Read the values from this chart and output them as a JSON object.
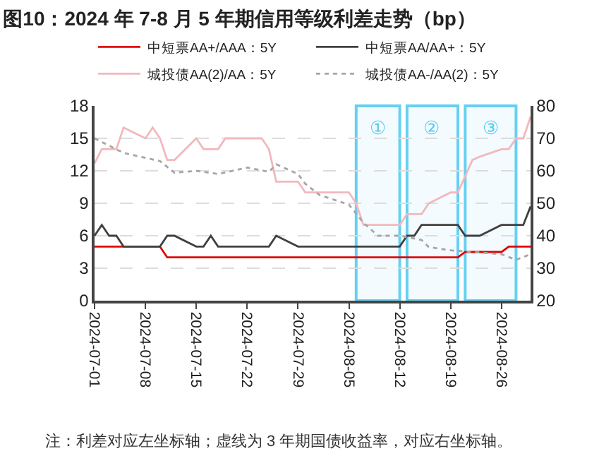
{
  "chart_data": {
    "type": "line",
    "title": "图10：2024 年 7-8 月 5 年期信用等级利差走势（bp）",
    "x": [
      "2024-07-01",
      "2024-07-02",
      "2024-07-03",
      "2024-07-04",
      "2024-07-05",
      "2024-07-08",
      "2024-07-09",
      "2024-07-10",
      "2024-07-11",
      "2024-07-12",
      "2024-07-15",
      "2024-07-16",
      "2024-07-17",
      "2024-07-18",
      "2024-07-19",
      "2024-07-22",
      "2024-07-23",
      "2024-07-24",
      "2024-07-25",
      "2024-07-26",
      "2024-07-29",
      "2024-07-30",
      "2024-07-31",
      "2024-08-01",
      "2024-08-02",
      "2024-08-05",
      "2024-08-06",
      "2024-08-07",
      "2024-08-08",
      "2024-08-09",
      "2024-08-12",
      "2024-08-13",
      "2024-08-14",
      "2024-08-15",
      "2024-08-16",
      "2024-08-19",
      "2024-08-20",
      "2024-08-21",
      "2024-08-22",
      "2024-08-23",
      "2024-08-26",
      "2024-08-27",
      "2024-08-28",
      "2024-08-29",
      "2024-08-30"
    ],
    "series": [
      {
        "name": "中短票AA+/AAA：5Y",
        "color": "#e00000",
        "line_style": "solid",
        "values": [
          5,
          5,
          5,
          5,
          5,
          5,
          5,
          5,
          4,
          4,
          4,
          4,
          4,
          4,
          4,
          4,
          4,
          4,
          4,
          4,
          4,
          4,
          4,
          4,
          4,
          4,
          4,
          4,
          4,
          4,
          4,
          4,
          4,
          4,
          4,
          4,
          4,
          4.5,
          4.5,
          4.5,
          4.5,
          5,
          5,
          5,
          5
        ]
      },
      {
        "name": "中短票AA/AA+：5Y",
        "color": "#404040",
        "line_style": "solid",
        "values": [
          6,
          7,
          6,
          6,
          5,
          5,
          5,
          5,
          6,
          6,
          5,
          5,
          6,
          5,
          5,
          5,
          5,
          5,
          5,
          6,
          5,
          5,
          5,
          5,
          5,
          5,
          5,
          5,
          5,
          5,
          5,
          6,
          6,
          7,
          7,
          7,
          7,
          6,
          6,
          6,
          7,
          7,
          7,
          7,
          8.7
        ]
      },
      {
        "name": "城投债AA(2)/AA：5Y",
        "color": "#f2b8bd",
        "line_style": "solid",
        "values": [
          12.7,
          14,
          14,
          14,
          16,
          15,
          16,
          15,
          13,
          13,
          15,
          14,
          14,
          14,
          15,
          15,
          15,
          15,
          14,
          11,
          11,
          10,
          10,
          10,
          10,
          10,
          9,
          7,
          7,
          7,
          7,
          8,
          8,
          8,
          9,
          10,
          10,
          11.5,
          13,
          13.3,
          14,
          14,
          15,
          15,
          17
        ]
      },
      {
        "name": "城投债AA-/AA(2)：5Y",
        "color": "#a6a6a6",
        "line_style": "dotted",
        "axis": "y2",
        "x": [
          "2024-07-01",
          "2024-07-05",
          "2024-07-10",
          "2024-07-12",
          "2024-07-15",
          "2024-07-18",
          "2024-07-22",
          "2024-07-25",
          "2024-07-26",
          "2024-07-29",
          "2024-07-30",
          "2024-08-01",
          "2024-08-05",
          "2024-08-07",
          "2024-08-09",
          "2024-08-12",
          "2024-08-15",
          "2024-08-16",
          "2024-08-19",
          "2024-08-22",
          "2024-08-26",
          "2024-08-28",
          "2024-08-30"
        ],
        "values": [
          70,
          65.5,
          63,
          59.4,
          60,
          59,
          61,
          59.7,
          62,
          59,
          56,
          52.5,
          49.6,
          44,
          40,
          40,
          38.7,
          36.5,
          35.5,
          35,
          34.3,
          32.6,
          34.3
        ]
      }
    ],
    "xlim": [
      "2024-07-01",
      "2024-08-30"
    ],
    "xticks": [
      "2024-07-01",
      "2024-07-08",
      "2024-07-15",
      "2024-07-22",
      "2024-07-29",
      "2024-08-05",
      "2024-08-12",
      "2024-08-19",
      "2024-08-26"
    ],
    "ylim": [
      0,
      18
    ],
    "yticks": [
      0,
      3,
      6,
      9,
      12,
      15,
      18
    ],
    "y2lim": [
      20,
      80
    ],
    "y2ticks": [
      20,
      30,
      40,
      50,
      60,
      70,
      80
    ],
    "bands": [
      {
        "axis": "x",
        "from": "2024-08-06",
        "to": "2024-08-12",
        "label": "①",
        "color": "#55ccf0"
      },
      {
        "axis": "x",
        "from": "2024-08-13",
        "to": "2024-08-20",
        "label": "②",
        "color": "#55ccf0"
      },
      {
        "axis": "x",
        "from": "2024-08-21",
        "to": "2024-08-28",
        "label": "③",
        "color": "#55ccf0"
      }
    ],
    "annotations": [
      "注：利差对应左坐标轴；虚线为 3 年期国债收益率，对应右坐标轴。"
    ],
    "grid": "y",
    "legend": "top",
    "marker": "none"
  }
}
